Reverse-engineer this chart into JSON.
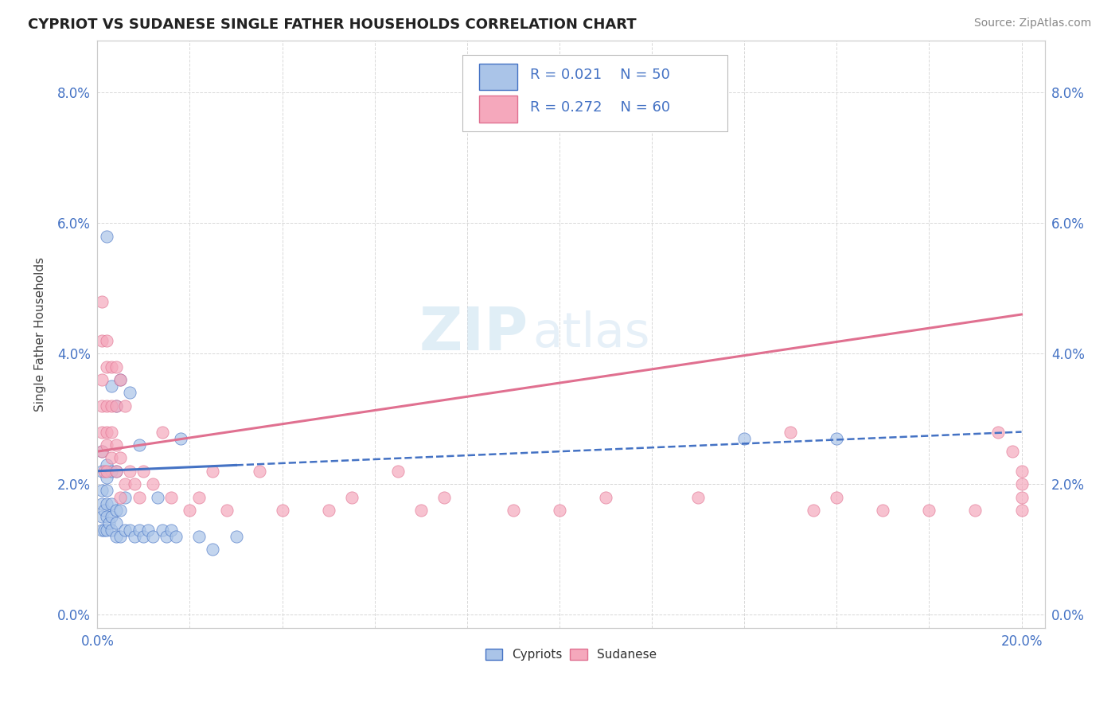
{
  "title": "CYPRIOT VS SUDANESE SINGLE FATHER HOUSEHOLDS CORRELATION CHART",
  "source": "Source: ZipAtlas.com",
  "ylabel": "Single Father Households",
  "xlim": [
    0.0,
    0.205
  ],
  "ylim": [
    -0.002,
    0.088
  ],
  "yticks": [
    0.0,
    0.02,
    0.04,
    0.06,
    0.08
  ],
  "ytick_labels": [
    "0.0%",
    "2.0%",
    "4.0%",
    "6.0%",
    "8.0%"
  ],
  "xticks": [
    0.0,
    0.02,
    0.04,
    0.06,
    0.08,
    0.1,
    0.12,
    0.14,
    0.16,
    0.18,
    0.2
  ],
  "xtick_labels": [
    "0.0%",
    "",
    "",
    "",
    "",
    "",
    "",
    "",
    "",
    "",
    "20.0%"
  ],
  "cypriot_color": "#aac4e8",
  "sudanese_color": "#f5a8bc",
  "cypriot_line_color": "#4472c4",
  "sudanese_line_color": "#e07090",
  "watermark_zip": "ZIP",
  "watermark_atlas": "atlas",
  "background_color": "#ffffff",
  "grid_color": "#d8d8d8",
  "cypriot_x": [
    0.001,
    0.001,
    0.001,
    0.001,
    0.001,
    0.001,
    0.0015,
    0.0015,
    0.002,
    0.002,
    0.002,
    0.002,
    0.002,
    0.002,
    0.002,
    0.0025,
    0.003,
    0.003,
    0.003,
    0.003,
    0.003,
    0.004,
    0.004,
    0.004,
    0.004,
    0.004,
    0.005,
    0.005,
    0.005,
    0.006,
    0.006,
    0.007,
    0.007,
    0.008,
    0.009,
    0.009,
    0.01,
    0.011,
    0.012,
    0.013,
    0.014,
    0.015,
    0.016,
    0.017,
    0.018,
    0.022,
    0.025,
    0.03,
    0.14,
    0.16
  ],
  "cypriot_y": [
    0.013,
    0.015,
    0.017,
    0.019,
    0.022,
    0.025,
    0.013,
    0.016,
    0.013,
    0.015,
    0.017,
    0.019,
    0.021,
    0.023,
    0.058,
    0.014,
    0.013,
    0.015,
    0.017,
    0.022,
    0.035,
    0.012,
    0.014,
    0.016,
    0.022,
    0.032,
    0.012,
    0.016,
    0.036,
    0.013,
    0.018,
    0.013,
    0.034,
    0.012,
    0.013,
    0.026,
    0.012,
    0.013,
    0.012,
    0.018,
    0.013,
    0.012,
    0.013,
    0.012,
    0.027,
    0.012,
    0.01,
    0.012,
    0.027,
    0.027
  ],
  "sudanese_x": [
    0.001,
    0.001,
    0.001,
    0.001,
    0.001,
    0.001,
    0.0015,
    0.002,
    0.002,
    0.002,
    0.002,
    0.002,
    0.002,
    0.003,
    0.003,
    0.003,
    0.003,
    0.004,
    0.004,
    0.004,
    0.004,
    0.005,
    0.005,
    0.005,
    0.006,
    0.006,
    0.007,
    0.008,
    0.009,
    0.01,
    0.012,
    0.014,
    0.016,
    0.02,
    0.022,
    0.025,
    0.028,
    0.035,
    0.04,
    0.05,
    0.055,
    0.065,
    0.07,
    0.075,
    0.09,
    0.1,
    0.11,
    0.13,
    0.15,
    0.155,
    0.16,
    0.17,
    0.18,
    0.19,
    0.195,
    0.198,
    0.2,
    0.2,
    0.2,
    0.2
  ],
  "sudanese_y": [
    0.025,
    0.028,
    0.032,
    0.036,
    0.042,
    0.048,
    0.022,
    0.022,
    0.026,
    0.028,
    0.032,
    0.038,
    0.042,
    0.024,
    0.028,
    0.032,
    0.038,
    0.022,
    0.026,
    0.032,
    0.038,
    0.018,
    0.024,
    0.036,
    0.02,
    0.032,
    0.022,
    0.02,
    0.018,
    0.022,
    0.02,
    0.028,
    0.018,
    0.016,
    0.018,
    0.022,
    0.016,
    0.022,
    0.016,
    0.016,
    0.018,
    0.022,
    0.016,
    0.018,
    0.016,
    0.016,
    0.018,
    0.018,
    0.028,
    0.016,
    0.018,
    0.016,
    0.016,
    0.016,
    0.028,
    0.025,
    0.022,
    0.02,
    0.018,
    0.016
  ],
  "cypriot_trend_x0": 0.0,
  "cypriot_trend_x1": 0.2,
  "cypriot_trend_y0": 0.022,
  "cypriot_trend_y1": 0.028,
  "sudanese_trend_x0": 0.0,
  "sudanese_trend_x1": 0.2,
  "sudanese_trend_y0": 0.025,
  "sudanese_trend_y1": 0.046
}
